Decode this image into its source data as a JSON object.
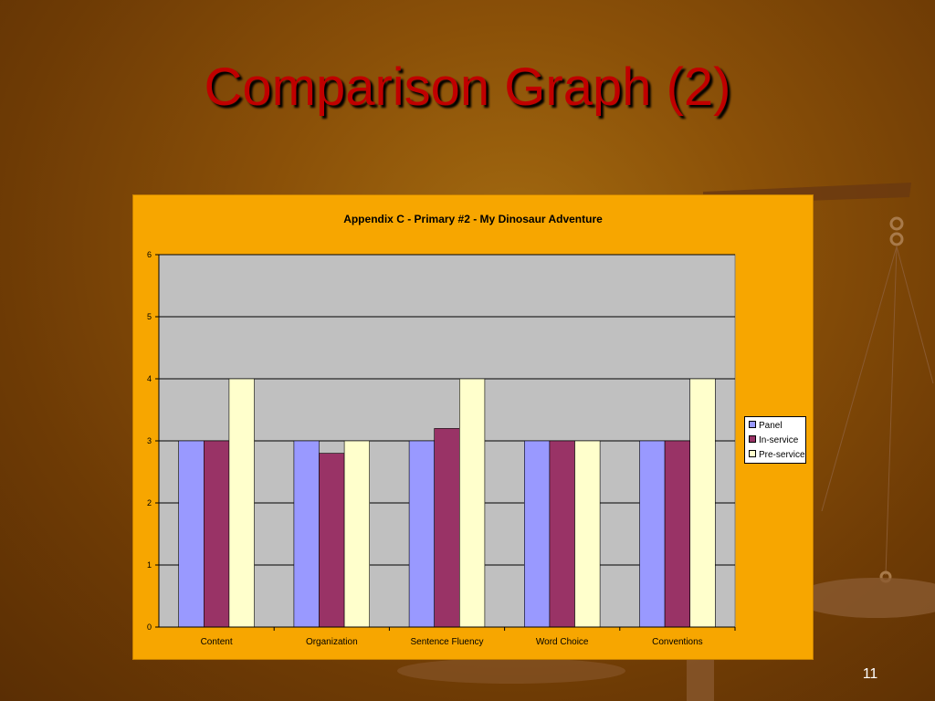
{
  "slide": {
    "title": "Comparison Graph (2)",
    "page_number": "11"
  },
  "colors": {
    "panel": "#9999ff",
    "in_service": "#993366",
    "pre_service": "#ffffcc",
    "plot_bg": "#c0c0c0",
    "frame_bg": "#f7a600"
  },
  "chart_data": {
    "type": "bar",
    "title": "Appendix C - Primary #2 - My Dinosaur Adventure",
    "categories": [
      "Content",
      "Organization",
      "Sentence Fluency",
      "Word Choice",
      "Conventions"
    ],
    "series": [
      {
        "name": "Panel",
        "values": [
          3,
          3,
          3,
          3,
          3
        ]
      },
      {
        "name": "In-service",
        "values": [
          3,
          2.8,
          3.2,
          3,
          3
        ]
      },
      {
        "name": "Pre-service",
        "values": [
          4,
          3,
          4,
          3,
          4
        ]
      }
    ],
    "ylim": [
      0,
      6
    ],
    "yticks": [
      "0",
      "1",
      "2",
      "3",
      "4",
      "5",
      "6"
    ],
    "grid": true,
    "legend": "right"
  }
}
